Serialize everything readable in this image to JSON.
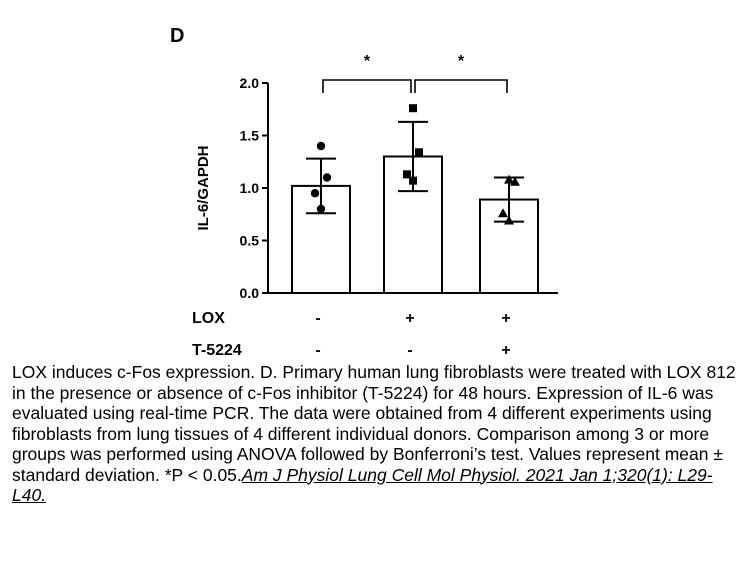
{
  "panel_label": "D",
  "chart_data": {
    "type": "bar",
    "ylabel": "IL-6/GAPDH",
    "ylim": [
      0,
      2.0
    ],
    "yticks": [
      "0.0",
      "0.5",
      "1.0",
      "1.5",
      "2.0"
    ],
    "grid": false,
    "bars": [
      {
        "value": 1.02,
        "error": 0.26,
        "points": [
          1.4,
          1.1,
          0.95,
          0.8
        ],
        "marker": "circle"
      },
      {
        "value": 1.3,
        "error": 0.33,
        "points": [
          1.76,
          1.34,
          1.13,
          1.07
        ],
        "marker": "square"
      },
      {
        "value": 0.89,
        "error": 0.21,
        "points": [
          1.08,
          1.06,
          0.76,
          0.69
        ],
        "marker": "triangle"
      }
    ],
    "conditions": [
      {
        "name": "LOX",
        "values": [
          "-",
          "+",
          "+"
        ]
      },
      {
        "name": "T-5224",
        "values": [
          "-",
          "-",
          "+"
        ]
      }
    ],
    "significance": [
      {
        "from": 0,
        "to": 1,
        "label": "*"
      },
      {
        "from": 1,
        "to": 2,
        "label": "*"
      }
    ]
  },
  "caption": {
    "text": "LOX induces c-Fos expression. D. Primary human lung fibroblasts were treated with LOX 812 in the presence or absence of c-Fos inhibitor (T-5224) for 48 hours. Expression of IL-6 was evaluated using real-time PCR. The data were obtained from 4 different experiments using fibroblasts from lung tissues of 4 different individual donors. Comparison among 3 or more groups was performed using ANOVA followed by Bonferroni’s test. Values represent mean ± standard deviation. *P < 0.05.",
    "citation": "Am J Physiol Lung Cell Mol Physiol. 2021 Jan 1;320(1): L29-L40."
  }
}
